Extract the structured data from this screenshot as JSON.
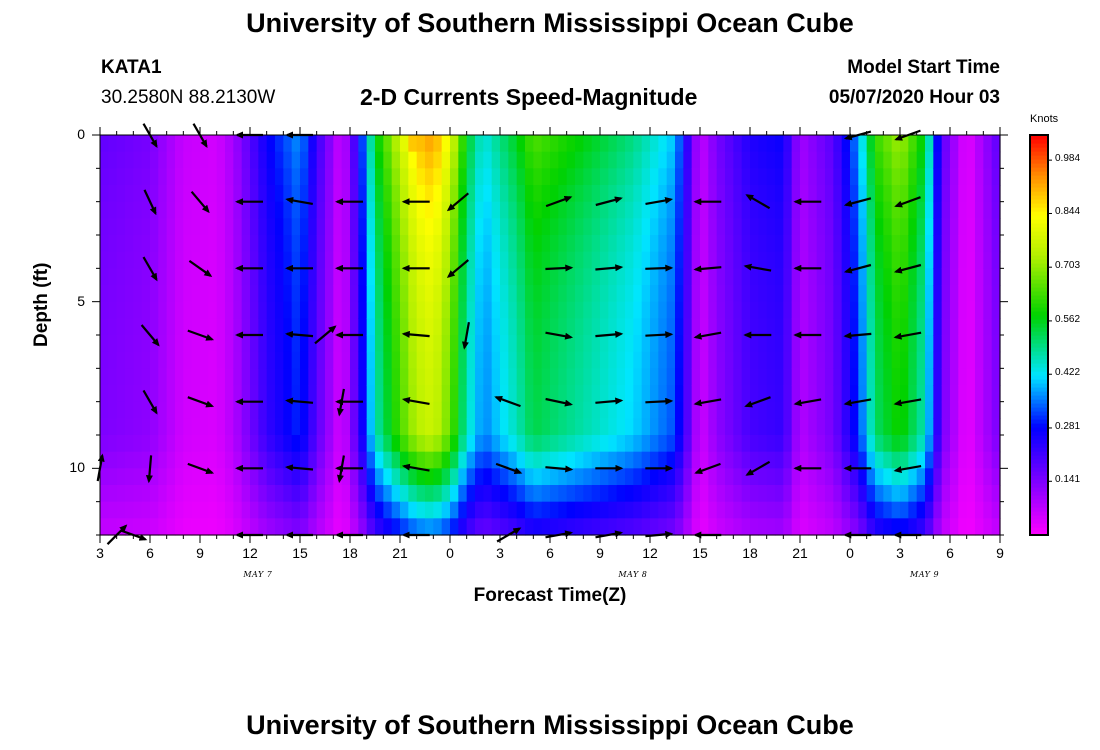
{
  "header": {
    "title_top": "University of Southern Mississippi Ocean Cube",
    "title_bottom": "University of Southern Mississippi Ocean Cube",
    "station_id": "KATA1",
    "station_coords": "30.2580N 88.2130W",
    "subtitle": "2-D Currents Speed-Magnitude",
    "model_start_label": "Model Start Time",
    "model_start_value": "05/07/2020 Hour 03"
  },
  "chart_data": {
    "type": "heatmap",
    "title": "2-D Currents Speed-Magnitude",
    "xlabel": "Forecast Time(Z)",
    "ylabel": "Depth (ft)",
    "colorbar_unit": "Knots",
    "colorbar_ticks": [
      "0.984",
      "0.844",
      "0.703",
      "0.562",
      "0.422",
      "0.281",
      "0.141"
    ],
    "colorbar_range": [
      0,
      1.05
    ],
    "x_hours_range": [
      0,
      54
    ],
    "y_range": [
      0,
      12
    ],
    "y_ticks": [
      "0",
      "5",
      "10"
    ],
    "x_ticks": [
      "3",
      "6",
      "9",
      "12",
      "15",
      "18",
      "21",
      "0",
      "3",
      "6",
      "9",
      "12",
      "15",
      "18",
      "21",
      "0",
      "3",
      "6",
      "9"
    ],
    "date_labels": [
      {
        "text": "MAY 7",
        "hour": 9.5
      },
      {
        "text": "MAY 8",
        "hour": 32
      },
      {
        "text": "MAY 9",
        "hour": 49.5
      }
    ],
    "speed_by_time": [
      [
        0,
        0.14
      ],
      [
        3,
        0.12
      ],
      [
        5,
        0.05
      ],
      [
        7,
        0.04
      ],
      [
        8,
        0.08
      ],
      [
        9,
        0.15
      ],
      [
        10,
        0.22
      ],
      [
        11,
        0.26
      ],
      [
        12,
        0.3
      ],
      [
        13,
        0.18
      ],
      [
        14.5,
        0.04
      ],
      [
        15.5,
        0.2
      ],
      [
        16.5,
        0.45
      ],
      [
        18,
        0.62
      ],
      [
        19,
        0.72
      ],
      [
        20,
        0.75
      ],
      [
        21,
        0.65
      ],
      [
        22,
        0.45
      ],
      [
        23,
        0.35
      ],
      [
        25,
        0.45
      ],
      [
        26,
        0.52
      ],
      [
        27,
        0.5
      ],
      [
        29,
        0.46
      ],
      [
        32,
        0.4
      ],
      [
        34.5,
        0.32
      ],
      [
        36,
        0.05
      ],
      [
        37,
        0.12
      ],
      [
        39,
        0.2
      ],
      [
        41,
        0.22
      ],
      [
        42,
        0.08
      ],
      [
        44,
        0.15
      ],
      [
        45.5,
        0.3
      ],
      [
        46.5,
        0.5
      ],
      [
        48,
        0.58
      ],
      [
        49.5,
        0.45
      ],
      [
        50.5,
        0.15
      ],
      [
        52,
        0.02
      ],
      [
        54,
        0.15
      ]
    ],
    "surface_peak": {
      "hour": 19,
      "width": 2.2,
      "value": 0.98
    },
    "arrow_depths": [
      0,
      2,
      4,
      6,
      8,
      10,
      12
    ],
    "arrows": [
      {
        "t": 3,
        "row": 0,
        "dir": 60
      },
      {
        "t": 6,
        "row": 0,
        "dir": 60
      },
      {
        "t": 3,
        "row": 1,
        "dir": 65
      },
      {
        "t": 6,
        "row": 1,
        "dir": 50
      },
      {
        "t": 3,
        "row": 2,
        "dir": 60
      },
      {
        "t": 6,
        "row": 2,
        "dir": 35
      },
      {
        "t": 3,
        "row": 3,
        "dir": 50
      },
      {
        "t": 6,
        "row": 3,
        "dir": 20
      },
      {
        "t": 3,
        "row": 4,
        "dir": 60
      },
      {
        "t": 6,
        "row": 4,
        "dir": 20
      },
      {
        "t": 3,
        "row": 5,
        "dir": 95
      },
      {
        "t": 6,
        "row": 5,
        "dir": 20
      },
      {
        "t": 0,
        "row": 5,
        "dir": -80
      },
      {
        "t": 1,
        "row": 6,
        "dir": -45
      },
      {
        "t": 2,
        "row": 6,
        "dir": 20
      },
      {
        "t": 9,
        "row": 0,
        "dir": 180
      },
      {
        "t": 12,
        "row": 0,
        "dir": 180
      },
      {
        "t": 9,
        "row": 1,
        "dir": 180
      },
      {
        "t": 12,
        "row": 1,
        "dir": 190
      },
      {
        "t": 9,
        "row": 2,
        "dir": 180
      },
      {
        "t": 12,
        "row": 2,
        "dir": 180
      },
      {
        "t": 9,
        "row": 3,
        "dir": 180
      },
      {
        "t": 12,
        "row": 3,
        "dir": 185
      },
      {
        "t": 9,
        "row": 4,
        "dir": 180
      },
      {
        "t": 12,
        "row": 4,
        "dir": 185
      },
      {
        "t": 9,
        "row": 5,
        "dir": 180
      },
      {
        "t": 12,
        "row": 5,
        "dir": 185
      },
      {
        "t": 9,
        "row": 6,
        "dir": 180
      },
      {
        "t": 12,
        "row": 6,
        "dir": 180
      },
      {
        "t": 13.5,
        "row": 3,
        "dir": -40
      },
      {
        "t": 14.5,
        "row": 4,
        "dir": 100
      },
      {
        "t": 14.5,
        "row": 5,
        "dir": 100
      },
      {
        "t": 15,
        "row": 1,
        "dir": 180
      },
      {
        "t": 19,
        "row": 1,
        "dir": 180
      },
      {
        "t": 15,
        "row": 2,
        "dir": 180
      },
      {
        "t": 19,
        "row": 2,
        "dir": 180
      },
      {
        "t": 15,
        "row": 3,
        "dir": 180
      },
      {
        "t": 19,
        "row": 3,
        "dir": 185
      },
      {
        "t": 15,
        "row": 4,
        "dir": 180
      },
      {
        "t": 19,
        "row": 4,
        "dir": 190
      },
      {
        "t": 15,
        "row": 5,
        "dir": 180
      },
      {
        "t": 19,
        "row": 5,
        "dir": 190
      },
      {
        "t": 15,
        "row": 6,
        "dir": 180
      },
      {
        "t": 19,
        "row": 6,
        "dir": 180
      },
      {
        "t": 21.5,
        "row": 1,
        "dir": 140
      },
      {
        "t": 21.5,
        "row": 2,
        "dir": 140
      },
      {
        "t": 22,
        "row": 3,
        "dir": 100
      },
      {
        "t": 24.5,
        "row": 4,
        "dir": -160
      },
      {
        "t": 24.5,
        "row": 5,
        "dir": 20
      },
      {
        "t": 24.5,
        "row": 6,
        "dir": -30
      },
      {
        "t": 27.5,
        "row": 1,
        "dir": -20
      },
      {
        "t": 30.5,
        "row": 1,
        "dir": -15
      },
      {
        "t": 33.5,
        "row": 1,
        "dir": -10
      },
      {
        "t": 27.5,
        "row": 2,
        "dir": -3
      },
      {
        "t": 30.5,
        "row": 2,
        "dir": -5
      },
      {
        "t": 33.5,
        "row": 2,
        "dir": -2
      },
      {
        "t": 27.5,
        "row": 3,
        "dir": 10
      },
      {
        "t": 30.5,
        "row": 3,
        "dir": -5
      },
      {
        "t": 33.5,
        "row": 3,
        "dir": -3
      },
      {
        "t": 27.5,
        "row": 4,
        "dir": 12
      },
      {
        "t": 30.5,
        "row": 4,
        "dir": -5
      },
      {
        "t": 33.5,
        "row": 4,
        "dir": -3
      },
      {
        "t": 27.5,
        "row": 5,
        "dir": 5
      },
      {
        "t": 30.5,
        "row": 5,
        "dir": 0
      },
      {
        "t": 33.5,
        "row": 5,
        "dir": 0
      },
      {
        "t": 27.5,
        "row": 6,
        "dir": -10
      },
      {
        "t": 30.5,
        "row": 6,
        "dir": -10
      },
      {
        "t": 33.5,
        "row": 6,
        "dir": -5
      },
      {
        "t": 36.5,
        "row": 1,
        "dir": 180
      },
      {
        "t": 36.5,
        "row": 2,
        "dir": 175
      },
      {
        "t": 36.5,
        "row": 3,
        "dir": 170
      },
      {
        "t": 36.5,
        "row": 4,
        "dir": 170
      },
      {
        "t": 36.5,
        "row": 5,
        "dir": 160
      },
      {
        "t": 36.5,
        "row": 6,
        "dir": 180
      },
      {
        "t": 39.5,
        "row": 1,
        "dir": -150
      },
      {
        "t": 42.5,
        "row": 1,
        "dir": 180
      },
      {
        "t": 39.5,
        "row": 2,
        "dir": -170
      },
      {
        "t": 42.5,
        "row": 2,
        "dir": 180
      },
      {
        "t": 39.5,
        "row": 3,
        "dir": -180
      },
      {
        "t": 42.5,
        "row": 3,
        "dir": 180
      },
      {
        "t": 39.5,
        "row": 4,
        "dir": 160
      },
      {
        "t": 42.5,
        "row": 4,
        "dir": 170
      },
      {
        "t": 39.5,
        "row": 5,
        "dir": 150
      },
      {
        "t": 42.5,
        "row": 5,
        "dir": 180
      },
      {
        "t": 45.5,
        "row": 0,
        "dir": 165
      },
      {
        "t": 45.5,
        "row": 1,
        "dir": 165
      },
      {
        "t": 45.5,
        "row": 2,
        "dir": 165
      },
      {
        "t": 45.5,
        "row": 3,
        "dir": 175
      },
      {
        "t": 45.5,
        "row": 4,
        "dir": 170
      },
      {
        "t": 45.5,
        "row": 5,
        "dir": 180
      },
      {
        "t": 45.5,
        "row": 6,
        "dir": 180
      },
      {
        "t": 48.5,
        "row": 0,
        "dir": 160
      },
      {
        "t": 48.5,
        "row": 1,
        "dir": 160
      },
      {
        "t": 48.5,
        "row": 2,
        "dir": 165
      },
      {
        "t": 48.5,
        "row": 3,
        "dir": 170
      },
      {
        "t": 48.5,
        "row": 4,
        "dir": 170
      },
      {
        "t": 48.5,
        "row": 5,
        "dir": 170
      },
      {
        "t": 48.5,
        "row": 6,
        "dir": 180
      }
    ]
  }
}
